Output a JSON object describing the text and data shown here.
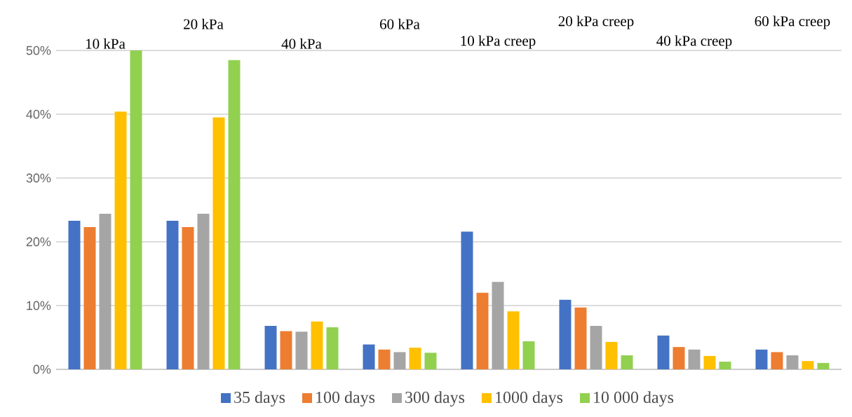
{
  "chart_data": {
    "type": "bar",
    "categories": [
      "10 kPa",
      "20 kPa",
      "40 kPa",
      "60 kPa",
      "10 kPa creep",
      "20 kPa creep",
      "40 kPa creep",
      "60 kPa creep"
    ],
    "series": [
      {
        "name": "35 days",
        "color": "#4472c4",
        "values": [
          23.3,
          23.3,
          6.8,
          3.9,
          21.6,
          10.9,
          5.3,
          3.1
        ]
      },
      {
        "name": "100 days",
        "color": "#ed7d31",
        "values": [
          22.3,
          22.3,
          6.0,
          3.1,
          12.0,
          9.7,
          3.5,
          2.7
        ]
      },
      {
        "name": "300 days",
        "color": "#a5a5a5",
        "values": [
          24.4,
          24.4,
          5.9,
          2.7,
          13.7,
          6.8,
          3.1,
          2.2
        ]
      },
      {
        "name": "1000 days",
        "color": "#ffc000",
        "values": [
          40.4,
          39.5,
          7.5,
          3.4,
          9.1,
          4.3,
          2.1,
          1.3
        ]
      },
      {
        "name": "10 000 days",
        "color": "#92d050",
        "values": [
          50.0,
          48.5,
          6.6,
          2.6,
          4.4,
          2.2,
          1.2,
          1.0
        ]
      }
    ],
    "ylim": [
      0,
      50
    ],
    "yticks": [
      {
        "value": 0,
        "label": "0%"
      },
      {
        "value": 10,
        "label": "10%"
      },
      {
        "value": 20,
        "label": "20%"
      },
      {
        "value": 30,
        "label": "30%"
      },
      {
        "value": 40,
        "label": "40%"
      },
      {
        "value": 50,
        "label": "50%"
      }
    ],
    "grid": "y",
    "legend": "bottom"
  }
}
